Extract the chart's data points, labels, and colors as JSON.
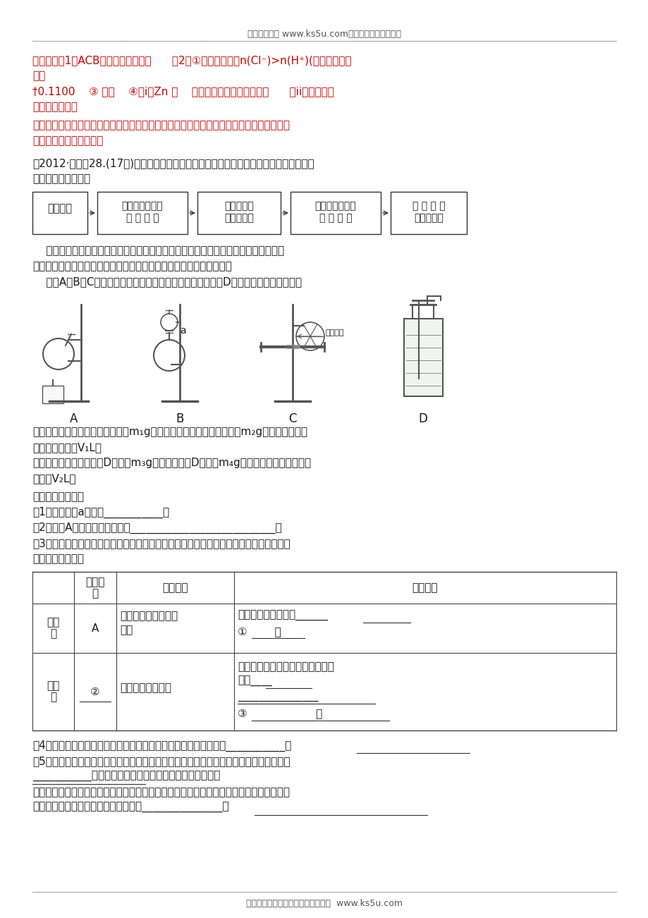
{
  "bg_color": "#ffffff",
  "header_text": "高考资源网（ www.ks5u.com），您身边的高考专家",
  "footer_text": "欢迎广大教师踊跃来稿，稿酬丰厚。  www.ks5u.com",
  "red_color": "#cc0000",
  "black_color": "#1a1a1a",
  "line1_red": "【答案】（1）ACB（按序写出三项）      （2）①残余清液中，n(Cl⁻)>n(H⁺)(或其他合理答",
  "line2_red": "案）",
  "line3_red": "†0.1100    ③ 偏小    ④（i）Zn 粒    残余清液（按序写出两项）      （ii）装置内气",
  "line4_red": "体尚未冷至室温",
  "line5_bold_red": "【考点定位】本题考查了化学实验方案基本操作、实验的设计与评价等，重在考查学生的实",
  "line6_bold_red": "验能力和数据处理能力。",
  "question_intro": "（2012·四川）28.(17分)甲、乙两个研究性学习小组为测定氨分子中氮、氢原子个数比，",
  "question_intro2": "设计如下实验流程：",
  "flow_box1": "制取氨气",
  "flow_box2": "装有足量干燥剂\n的 干 燥 管",
  "flow_box3": "装有氧化铜\n的硬质玻管",
  "flow_box4": "装有足量浓硫酸\n的 洗 气 瓶",
  "flow_box5": "测 定 生 成\n氨气的体积",
  "para1": "    实验中，先用制的的氨气排尽洗气瓶前所有装置中的空气，再连接洗气瓶和气体收集",
  "para2": "装置，立即加热氧化铜。反应完毕后，黑色的氧化铜转化为红色的铜。",
  "para3": "    下图A、B、C为甲、乙两小组制取氨气时可能用到的装置，D为盛有浓硫酸的洗气瓶。",
  "text_after_img1": "甲小组测得，反应前氧化铜的质量m₁g、氧化铜反应后剩余固体的质量m₂g、生成氮气在标",
  "text_after_img2": "准状况下的体积V₁L。",
  "text_after_img3": "乙小组测得，洗气前装置D的质量m₃g、洗气后装置D的质量m₄g、生成氮气在标准状况下",
  "text_after_img4": "的体积V₂L。",
  "questions_header": "请回答下列问题：",
  "q1": "（1）写出件器a的名称___________。",
  "q2": "（2）检查A装置气密性的操作是___________________________。",
  "q3": "（3）甲、乙两小组选择了不同的方法制取氨气，请将实验装置的字母编号和制备原理填写",
  "q3b": "在下表的空格中。",
  "q4": "（4）甲小组用所测得数据计算出氨分子中氮、氢的原子个数之比为___________。",
  "q5": "（5）乙小组用所测得数据计算出氨分子中氮、氢的原子个数比明显小于理论値，其原因是",
  "q5b": "___________。为此，乙小组在有实验的基础上增加了一个",
  "q5c": "装有某药品的实验件器，重新实验。根据实验前后该药品的质量变化及生成氮气的体积，得",
  "q5d": "出了合理的实验结果。该药品的名称是_______________。",
  "tbl_h0": "",
  "tbl_h1": "实验装\n置",
  "tbl_h2": "实验药品",
  "tbl_h3": "制备原理",
  "tbl_r1c0": "甲小\n组",
  "tbl_r1c1": "A",
  "tbl_r1c2a": "氢氧化馒、硫酸、硫",
  "tbl_r1c2b": "酸铵",
  "tbl_r1c3a": "反应的化学方程式为______",
  "tbl_r1c3b": "①        。",
  "tbl_r2c0": "乙小\n组",
  "tbl_r2c1": "②",
  "tbl_r2c2": "浓氨水、氧氧化馒",
  "tbl_r2c3a": "用化学平衡原理分析氢氧化馒的作",
  "tbl_r2c3b": "用：____",
  "tbl_r2c3c": "_______________",
  "tbl_r2c3d": "③                    。"
}
